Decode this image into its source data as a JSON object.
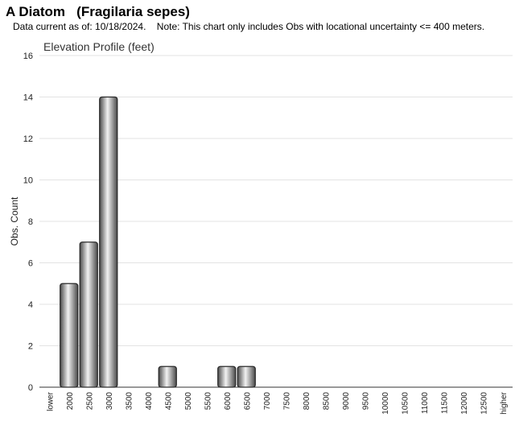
{
  "header": {
    "title": "A Diatom   (Fragilaria sepes)",
    "subtitle": "Data current as of: 10/18/2024.    Note: This chart only includes Obs with locational uncertainty <= 400 meters."
  },
  "chart_data": {
    "type": "bar",
    "title": "Elevation Profile (feet)",
    "xlabel": "",
    "ylabel": "Obs. Count",
    "ylim": [
      0,
      16
    ],
    "yticks": [
      0,
      2,
      4,
      6,
      8,
      10,
      12,
      14,
      16
    ],
    "grid": true,
    "legend": "none",
    "categories": [
      "lower",
      "2000",
      "2500",
      "3000",
      "3500",
      "4000",
      "4500",
      "5000",
      "5500",
      "6000",
      "6500",
      "7000",
      "7500",
      "8000",
      "8500",
      "9000",
      "9500",
      "10000",
      "10500",
      "11000",
      "11500",
      "12000",
      "12500",
      "higher"
    ],
    "values": [
      0,
      5,
      7,
      14,
      0,
      0,
      1,
      0,
      0,
      1,
      1,
      0,
      0,
      0,
      0,
      0,
      0,
      0,
      0,
      0,
      0,
      0,
      0,
      0
    ],
    "colors": {
      "bar_dark": "#4a4a4a",
      "bar_light": "#f2f2f2",
      "bar_stroke": "#2b2b2b",
      "grid": "#e3e3e3",
      "axis": "#333333"
    }
  }
}
